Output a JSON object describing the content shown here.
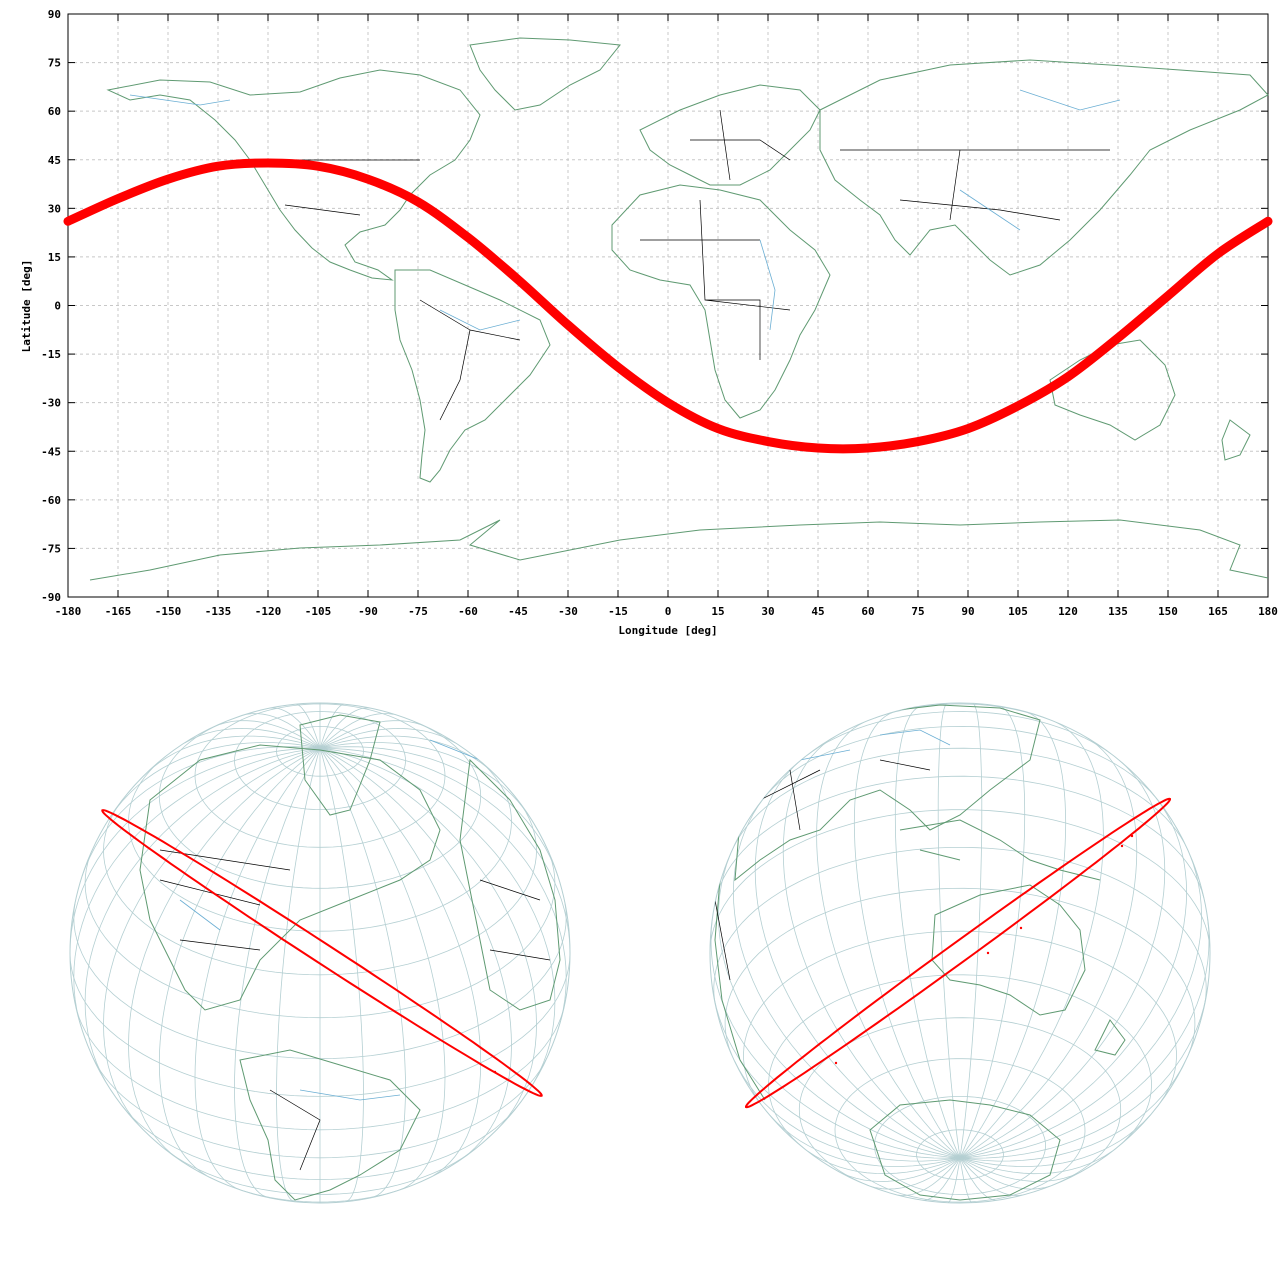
{
  "chart_data": [
    {
      "type": "line",
      "projection": "equirectangular",
      "xlabel": "Longitude [deg]",
      "ylabel": "Latitude [deg]",
      "xlim": [
        -180,
        180
      ],
      "ylim": [
        -90,
        90
      ],
      "xticks": [
        -180,
        -165,
        -150,
        -135,
        -120,
        -105,
        -90,
        -75,
        -60,
        -45,
        -30,
        -15,
        0,
        15,
        30,
        45,
        60,
        75,
        90,
        105,
        120,
        135,
        150,
        165,
        180
      ],
      "yticks": [
        90,
        75,
        60,
        45,
        30,
        15,
        0,
        -15,
        -30,
        -45,
        -60,
        -75,
        -90
      ],
      "grid": true,
      "series": [
        {
          "color": "#ff0000",
          "x": [
            -180,
            -165,
            -150,
            -135,
            -120,
            -105,
            -90,
            -75,
            -60,
            -45,
            -30,
            -15,
            0,
            15,
            30,
            45,
            60,
            75,
            90,
            105,
            120,
            135,
            150,
            165,
            180
          ],
          "y": [
            26,
            33,
            39,
            43,
            44,
            43,
            39,
            32,
            21,
            8,
            -6,
            -19,
            -30,
            -38,
            -42,
            -44,
            -44,
            -42,
            -38,
            -31,
            -22,
            -10,
            3,
            16,
            26
          ]
        }
      ]
    },
    {
      "type": "map",
      "projection": "orthographic",
      "view": "western-hemisphere globe",
      "orbit_color": "#ff0000"
    },
    {
      "type": "map",
      "projection": "orthographic",
      "view": "eastern-hemisphere / southern globe",
      "orbit_color": "#ff0000"
    }
  ],
  "colors": {
    "coastline": "#5f9a72",
    "river": "#6aaed3",
    "border": "#000000",
    "grid": "#c8c8c8",
    "globe_grid": "#b4cfd2",
    "track": "#ff0000"
  }
}
